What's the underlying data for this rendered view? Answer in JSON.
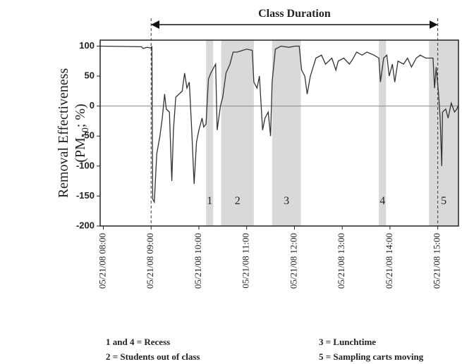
{
  "chart_data": {
    "type": "line",
    "y_label": "Removal Effectiveness",
    "y_label_unit": {
      "prefix": "(PM",
      "subscript": "10",
      "suffix": "; %)"
    },
    "annotation": "Class Duration",
    "reference_lines": [
      "05/21/08 09:00",
      "05/21/08 15:00"
    ],
    "bands": [
      {
        "label": "1",
        "start": "05/21/08 10:09",
        "end": "05/21/08 10:18"
      },
      {
        "label": "2",
        "start": "05/21/08 10:28",
        "end": "05/21/08 11:09"
      },
      {
        "label": "3",
        "start": "05/21/08 11:32",
        "end": "05/21/08 12:08"
      },
      {
        "label": "4",
        "start": "05/21/08 13:46",
        "end": "05/21/08 13:55"
      },
      {
        "label": "5",
        "start": "05/21/08 14:49",
        "end": "05/21/08 15:26"
      }
    ],
    "band_color": "#d9d9d9",
    "notes": [
      "1 and 4 = Recess",
      "2 = Students out of class",
      "3 = Lunchtime",
      "5 = Sampling carts moving"
    ],
    "x": [
      "05/21/08 07:56",
      "05/21/08 08:48",
      "05/21/08 08:50",
      "05/21/08 08:55",
      "05/21/08 08:59",
      "05/21/08 09:01",
      "05/21/08 09:02",
      "05/21/08 09:04",
      "05/21/08 09:07",
      "05/21/08 09:11",
      "05/21/08 09:14",
      "05/21/08 09:17",
      "05/21/08 09:19",
      "05/21/08 09:23",
      "05/21/08 09:26",
      "05/21/08 09:28",
      "05/21/08 09:31",
      "05/21/08 09:35",
      "05/21/08 09:39",
      "05/21/08 09:42",
      "05/21/08 09:45",
      "05/21/08 09:48",
      "05/21/08 09:51",
      "05/21/08 09:54",
      "05/21/08 09:57",
      "05/21/08 10:00",
      "05/21/08 10:04",
      "05/21/08 10:06",
      "05/21/08 10:09",
      "05/21/08 10:12",
      "05/21/08 10:15",
      "05/21/08 10:21",
      "05/21/08 10:23",
      "05/21/08 10:27",
      "05/21/08 10:30",
      "05/21/08 10:34",
      "05/21/08 10:39",
      "05/21/08 10:43",
      "05/21/08 10:48",
      "05/21/08 10:53",
      "05/21/08 11:00",
      "05/21/08 11:07",
      "05/21/08 11:09",
      "05/21/08 11:13",
      "05/21/08 11:16",
      "05/21/08 11:20",
      "05/21/08 11:23",
      "05/21/08 11:27",
      "05/21/08 11:30",
      "05/21/08 11:32",
      "05/21/08 11:36",
      "05/21/08 11:43",
      "05/21/08 11:53",
      "05/21/08 12:01",
      "05/21/08 12:06",
      "05/21/08 12:09",
      "05/21/08 12:13",
      "05/21/08 12:16",
      "05/21/08 12:20",
      "05/21/08 12:27",
      "05/21/08 12:34",
      "05/21/08 12:39",
      "05/21/08 12:47",
      "05/21/08 12:52",
      "05/21/08 12:55",
      "05/21/08 13:02",
      "05/21/08 13:09",
      "05/21/08 13:13",
      "05/21/08 13:18",
      "05/21/08 13:25",
      "05/21/08 13:31",
      "05/21/08 13:40",
      "05/21/08 13:46",
      "05/21/08 13:48",
      "05/21/08 13:52",
      "05/21/08 13:56",
      "05/21/08 13:59",
      "05/21/08 14:03",
      "05/21/08 14:06",
      "05/21/08 14:10",
      "05/21/08 14:17",
      "05/21/08 14:22",
      "05/21/08 14:27",
      "05/21/08 14:33",
      "05/21/08 14:38",
      "05/21/08 14:45",
      "05/21/08 14:50",
      "05/21/08 14:54",
      "05/21/08 14:56",
      "05/21/08 14:58",
      "05/21/08 15:01",
      "05/21/08 15:03",
      "05/21/08 15:05",
      "05/21/08 15:06",
      "05/21/08 15:10",
      "05/21/08 15:13",
      "05/21/08 15:17",
      "05/21/08 15:21",
      "05/21/08 15:24",
      "05/21/08 15:26"
    ],
    "series": [
      {
        "color": "#333333",
        "values": [
          100,
          99,
          96,
          98,
          97,
          99,
          -155,
          -160,
          -80,
          -50,
          -20,
          20,
          -5,
          -10,
          -125,
          -40,
          15,
          20,
          25,
          55,
          30,
          40,
          -40,
          -130,
          -60,
          -40,
          -20,
          -35,
          -30,
          45,
          55,
          70,
          -40,
          0,
          15,
          55,
          70,
          90,
          90,
          92,
          95,
          93,
          40,
          30,
          50,
          -40,
          -20,
          -10,
          -50,
          40,
          95,
          100,
          98,
          100,
          100,
          60,
          50,
          20,
          50,
          80,
          85,
          70,
          80,
          60,
          75,
          80,
          70,
          78,
          90,
          85,
          90,
          85,
          80,
          40,
          80,
          85,
          50,
          70,
          40,
          75,
          70,
          80,
          65,
          80,
          85,
          80,
          80,
          80,
          30,
          65,
          20,
          -20,
          -100,
          -10,
          -5,
          -20,
          5,
          -10,
          -5,
          2
        ]
      }
    ],
    "xlim": [
      "05/21/08 07:56",
      "05/21/08 15:26"
    ],
    "xticks": [
      "05/21/08 08:00",
      "05/21/08 09:00",
      "05/21/08 10:00",
      "05/21/08 11:00",
      "05/21/08 12:00",
      "05/21/08 13:00",
      "05/21/08 14:00",
      "05/21/08 15:00"
    ],
    "ylim": [
      -200,
      110
    ],
    "yticks": [
      -200,
      -150,
      -100,
      -50,
      0,
      50,
      100
    ],
    "zero_line": true
  }
}
